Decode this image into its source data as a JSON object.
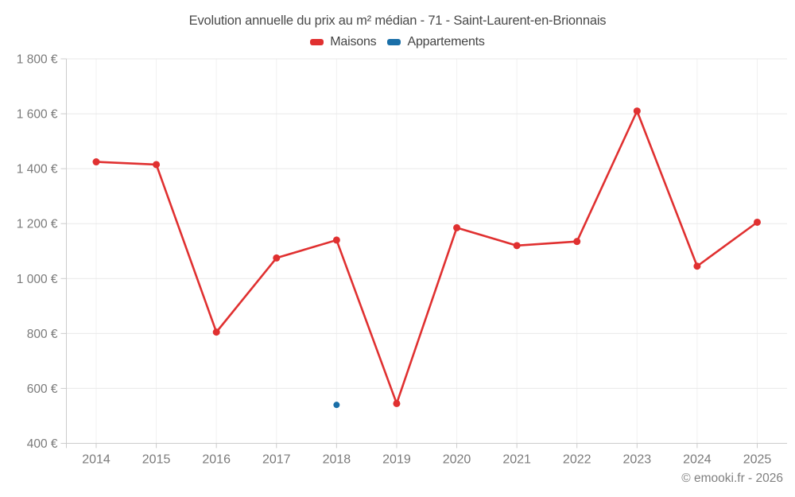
{
  "title": "Evolution annuelle du prix au m² médian - 71 - Saint-Laurent-en-Brionnais",
  "footer": "© emooki.fr - 2026",
  "legend": {
    "items": [
      {
        "label": "Maisons",
        "color": "#e03030"
      },
      {
        "label": "Appartements",
        "color": "#1a6fa8"
      }
    ]
  },
  "colors": {
    "grid_horizontal": "#e9e9e9",
    "grid_vertical": "#f1f1f1",
    "axis": "#cccccc",
    "tick_label": "#7a7a7a",
    "title_text": "#4a4a4a"
  },
  "chart_data": {
    "type": "line",
    "x": [
      2014,
      2015,
      2016,
      2017,
      2018,
      2019,
      2020,
      2021,
      2022,
      2023,
      2024,
      2025
    ],
    "series": [
      {
        "name": "Maisons",
        "color": "#e03030",
        "values": [
          1425,
          1415,
          805,
          1075,
          1140,
          545,
          1185,
          1120,
          1135,
          1610,
          1045,
          1205
        ]
      },
      {
        "name": "Appartements",
        "color": "#1a6fa8",
        "values": [
          null,
          null,
          null,
          null,
          540,
          null,
          null,
          null,
          null,
          null,
          null,
          null
        ]
      }
    ],
    "title": "Evolution annuelle du prix au m² médian - 71 - Saint-Laurent-en-Brionnais",
    "xlabel": "",
    "ylabel": "",
    "ylim": [
      400,
      1800
    ],
    "ytick_step": 200,
    "ytick_suffix": " €",
    "grid": true,
    "legend_position": "top"
  }
}
